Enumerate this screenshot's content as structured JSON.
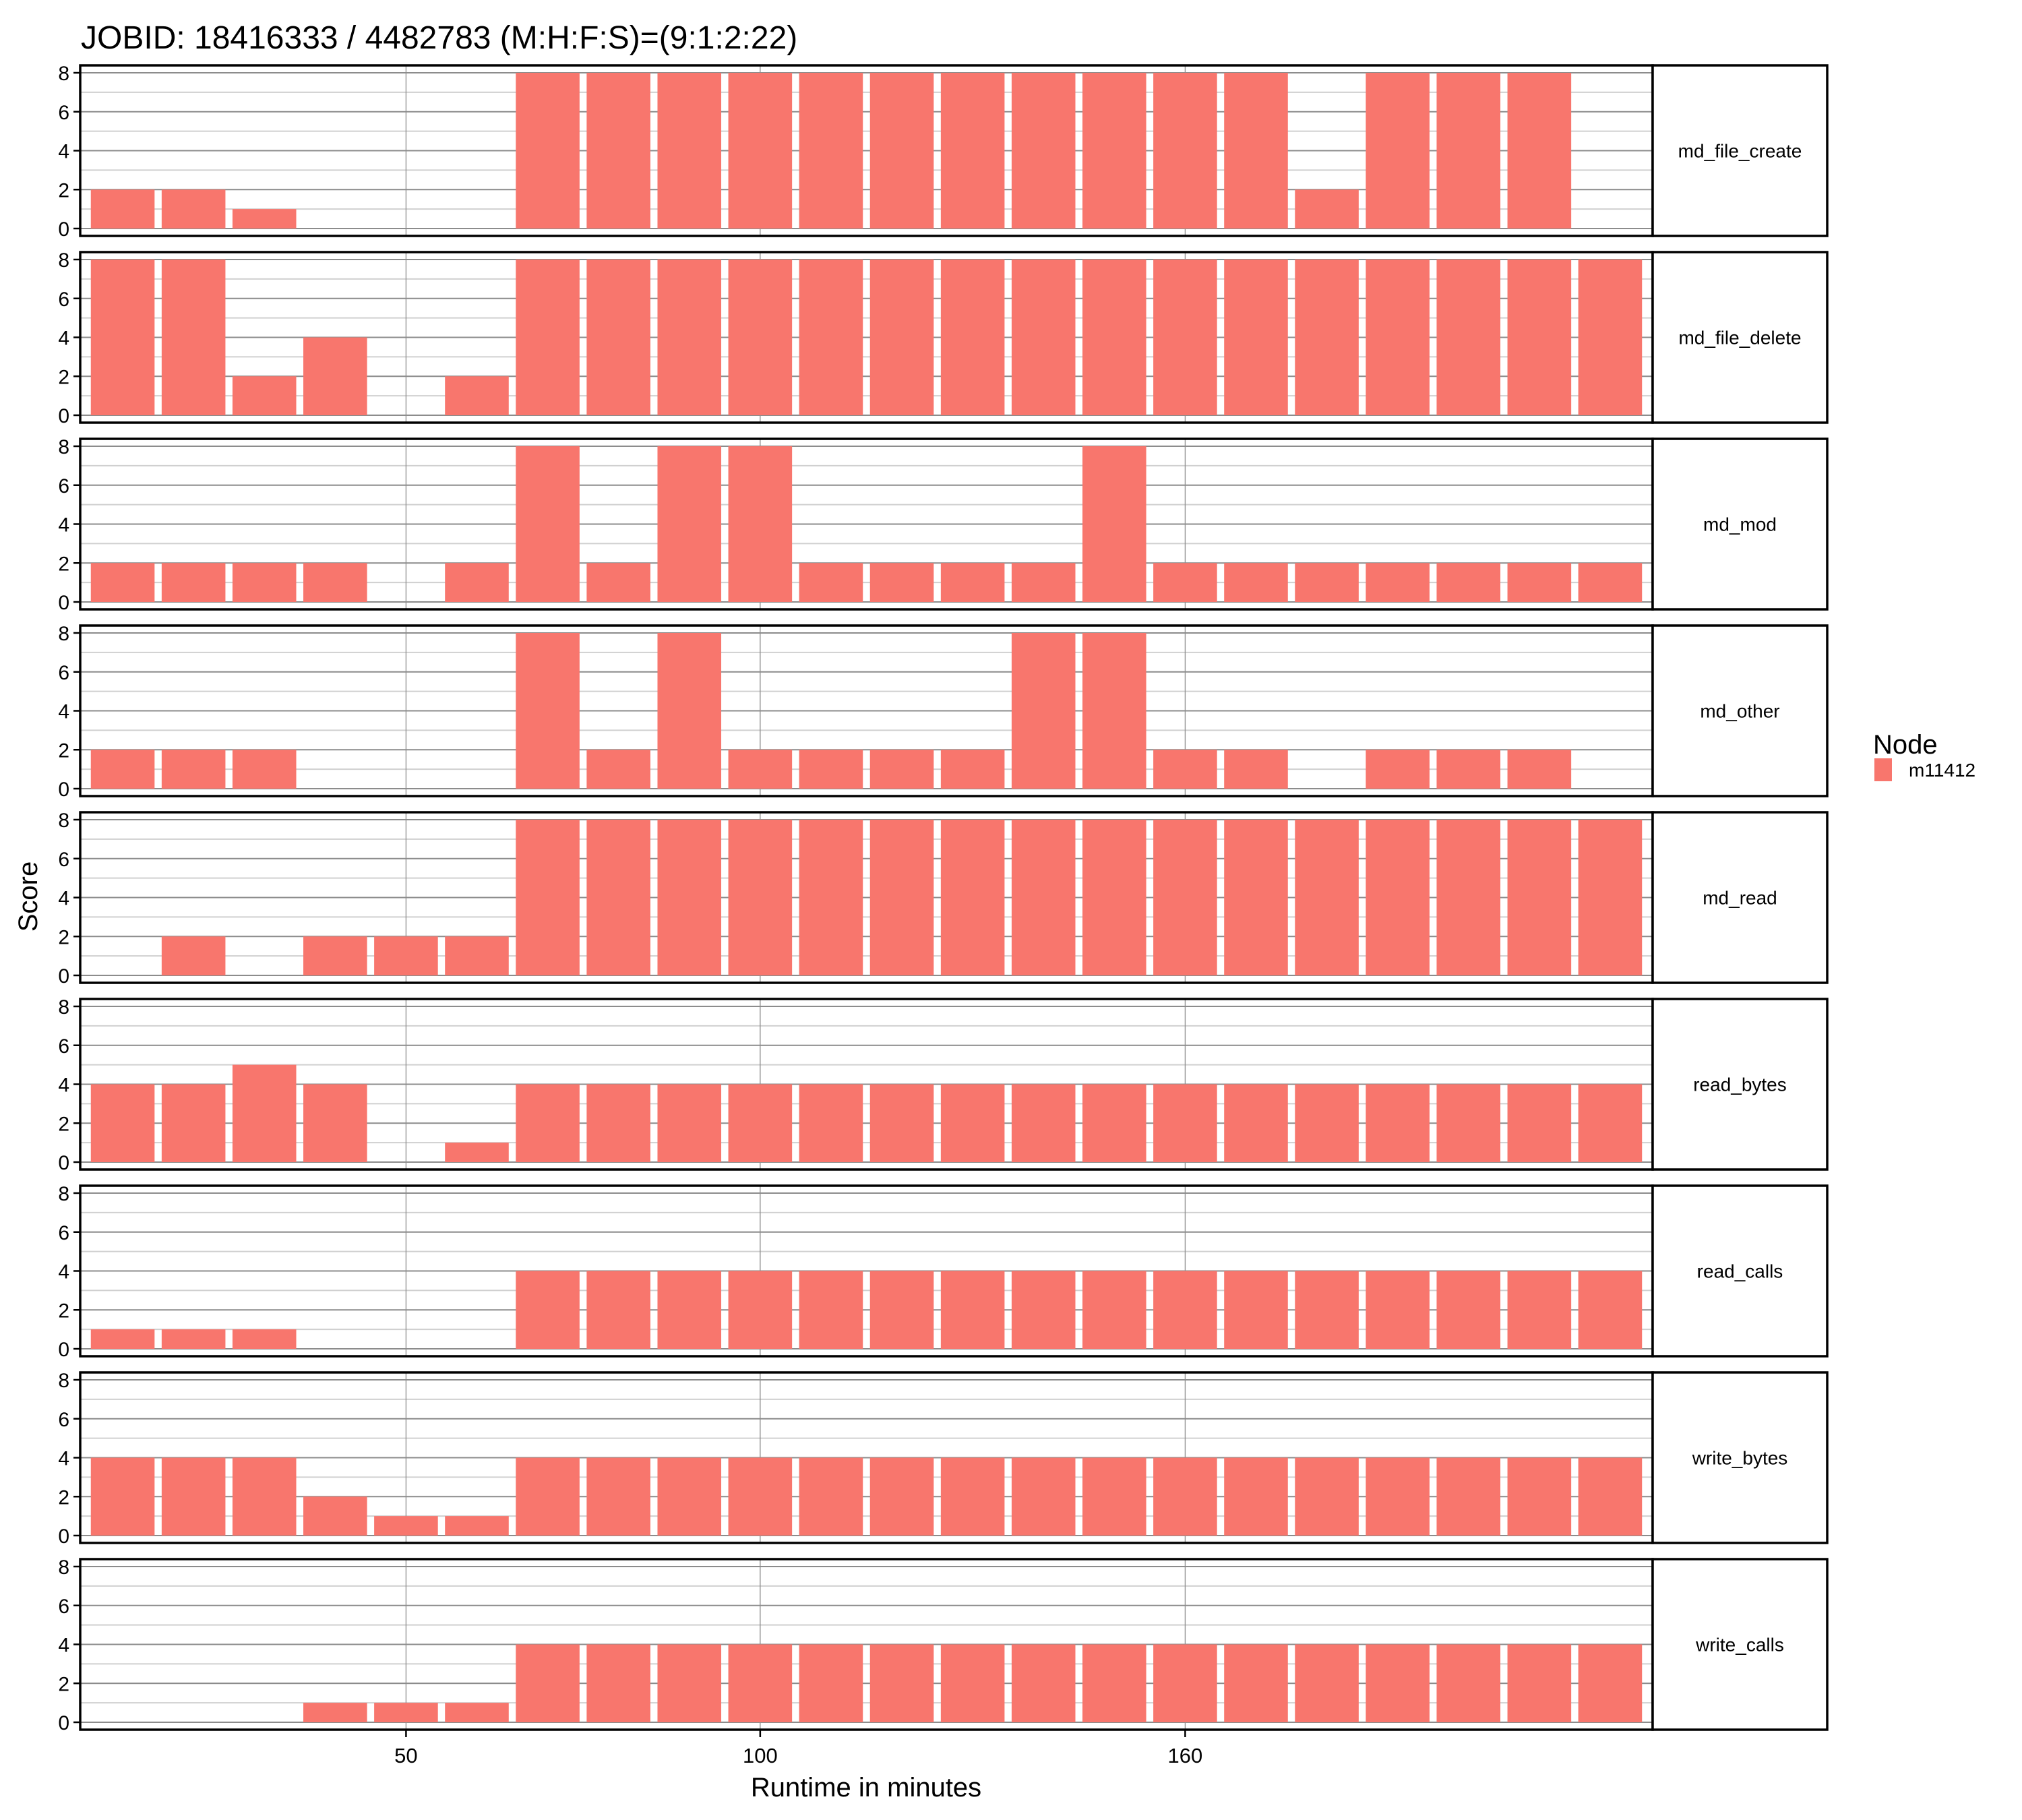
{
  "chart_data": {
    "type": "bar",
    "title": "JOBID: 18416333 / 4482783 (M:H:F:S)=(9:1:2:22)",
    "xlabel": "Runtime in minutes",
    "ylabel": "Score",
    "ylim": [
      0,
      8
    ],
    "y_ticks": [
      "0",
      "2",
      "4",
      "6",
      "8"
    ],
    "x_ticks": [
      {
        "label": "50",
        "category_index": 4
      },
      {
        "label": "100",
        "category_index": 9
      },
      {
        "label": "160",
        "category_index": 15
      }
    ],
    "category_count": 22,
    "grid": true,
    "legend": {
      "title": "Node",
      "placement": "right",
      "entries": [
        {
          "label": "m11412",
          "color": "#F8766D"
        }
      ]
    },
    "bar_color": "#F8766D",
    "panels": [
      {
        "label": "md_file_create",
        "values": [
          2,
          2,
          1,
          0,
          0,
          0,
          8,
          8,
          8,
          8,
          8,
          8,
          8,
          8,
          8,
          8,
          8,
          2,
          8,
          8,
          8,
          0
        ]
      },
      {
        "label": "md_file_delete",
        "values": [
          8,
          8,
          2,
          4,
          0,
          2,
          8,
          8,
          8,
          8,
          8,
          8,
          8,
          8,
          8,
          8,
          8,
          8,
          8,
          8,
          8,
          8
        ]
      },
      {
        "label": "md_mod",
        "values": [
          2,
          2,
          2,
          2,
          0,
          2,
          8,
          2,
          8,
          8,
          2,
          2,
          2,
          2,
          8,
          2,
          2,
          2,
          2,
          2,
          2,
          2
        ]
      },
      {
        "label": "md_other",
        "values": [
          2,
          2,
          2,
          0,
          0,
          0,
          8,
          2,
          8,
          2,
          2,
          2,
          2,
          8,
          8,
          2,
          2,
          0,
          2,
          2,
          2,
          0
        ]
      },
      {
        "label": "md_read",
        "values": [
          0,
          2,
          0,
          2,
          2,
          2,
          8,
          8,
          8,
          8,
          8,
          8,
          8,
          8,
          8,
          8,
          8,
          8,
          8,
          8,
          8,
          8
        ]
      },
      {
        "label": "read_bytes",
        "values": [
          4,
          4,
          5,
          4,
          0,
          1,
          4,
          4,
          4,
          4,
          4,
          4,
          4,
          4,
          4,
          4,
          4,
          4,
          4,
          4,
          4,
          4
        ]
      },
      {
        "label": "read_calls",
        "values": [
          1,
          1,
          1,
          0,
          0,
          0,
          4,
          4,
          4,
          4,
          4,
          4,
          4,
          4,
          4,
          4,
          4,
          4,
          4,
          4,
          4,
          4
        ]
      },
      {
        "label": "write_bytes",
        "values": [
          4,
          4,
          4,
          2,
          1,
          1,
          4,
          4,
          4,
          4,
          4,
          4,
          4,
          4,
          4,
          4,
          4,
          4,
          4,
          4,
          4,
          4
        ]
      },
      {
        "label": "write_calls",
        "values": [
          0,
          0,
          0,
          1,
          1,
          1,
          4,
          4,
          4,
          4,
          4,
          4,
          4,
          4,
          4,
          4,
          4,
          4,
          4,
          4,
          4,
          4
        ]
      }
    ]
  }
}
